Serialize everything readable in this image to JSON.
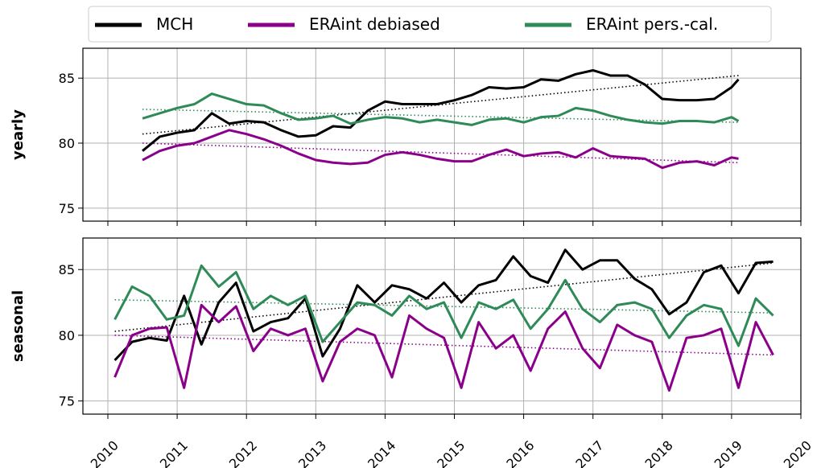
{
  "chart_data": [
    {
      "type": "line",
      "ylabel": "yearly",
      "x": [
        2010.5,
        2010.75,
        2011.0,
        2011.25,
        2011.5,
        2011.75,
        2012.0,
        2012.25,
        2012.5,
        2012.75,
        2013.0,
        2013.25,
        2013.5,
        2013.75,
        2014.0,
        2014.25,
        2014.5,
        2014.75,
        2015.0,
        2015.25,
        2015.5,
        2015.75,
        2016.0,
        2016.25,
        2016.5,
        2016.75,
        2017.0,
        2017.25,
        2017.5,
        2017.75,
        2018.0,
        2018.25,
        2018.5,
        2018.75,
        2019.0,
        2019.1
      ],
      "series": [
        {
          "name": "MCH",
          "color": "#000000",
          "values": [
            79.4,
            80.5,
            80.8,
            81.0,
            82.3,
            81.5,
            81.7,
            81.6,
            81.0,
            80.5,
            80.6,
            81.3,
            81.2,
            82.5,
            83.2,
            83.0,
            83.0,
            83.0,
            83.3,
            83.7,
            84.3,
            84.2,
            84.3,
            84.9,
            84.8,
            85.3,
            85.6,
            85.2,
            85.2,
            84.5,
            83.4,
            83.3,
            83.3,
            83.4,
            84.3,
            84.9
          ]
        },
        {
          "name": "ERAint debiased",
          "color": "#8b008b",
          "values": [
            78.7,
            79.4,
            79.8,
            80.0,
            80.5,
            81.0,
            80.7,
            80.3,
            79.8,
            79.2,
            78.7,
            78.5,
            78.4,
            78.5,
            79.1,
            79.3,
            79.1,
            78.8,
            78.6,
            78.6,
            79.1,
            79.5,
            79.0,
            79.2,
            79.3,
            78.9,
            79.6,
            79.0,
            78.9,
            78.8,
            78.1,
            78.5,
            78.6,
            78.3,
            78.9,
            78.8
          ]
        },
        {
          "name": "ERAint pers.-cal.",
          "color": "#2e8b57",
          "values": [
            81.9,
            82.3,
            82.7,
            83.0,
            83.8,
            83.4,
            83.0,
            82.9,
            82.3,
            81.8,
            81.9,
            82.1,
            81.5,
            81.8,
            82.0,
            81.9,
            81.6,
            81.8,
            81.6,
            81.4,
            81.8,
            81.9,
            81.6,
            82.0,
            82.1,
            82.7,
            82.5,
            82.1,
            81.8,
            81.6,
            81.5,
            81.7,
            81.7,
            81.6,
            82.0,
            81.7
          ]
        }
      ],
      "trends": [
        {
          "color": "#000000",
          "x": [
            2010.5,
            2019.1
          ],
          "values": [
            80.7,
            85.2
          ]
        },
        {
          "color": "#8b008b",
          "x": [
            2010.5,
            2019.1
          ],
          "values": [
            80.0,
            78.5
          ]
        },
        {
          "color": "#2e8b57",
          "x": [
            2010.5,
            2019.1
          ],
          "values": [
            82.6,
            81.6
          ]
        }
      ],
      "ylim": [
        74,
        87.3
      ],
      "yticks": [
        75,
        80,
        85
      ],
      "grid": true
    },
    {
      "type": "line",
      "ylabel": "seasonal",
      "x": [
        2010.1,
        2010.35,
        2010.6,
        2010.85,
        2011.1,
        2011.35,
        2011.6,
        2011.85,
        2012.1,
        2012.35,
        2012.6,
        2012.85,
        2013.1,
        2013.35,
        2013.6,
        2013.85,
        2014.1,
        2014.35,
        2014.6,
        2014.85,
        2015.1,
        2015.35,
        2015.6,
        2015.85,
        2016.1,
        2016.35,
        2016.6,
        2016.85,
        2017.1,
        2017.35,
        2017.6,
        2017.85,
        2018.1,
        2018.35,
        2018.6,
        2018.85,
        2019.1,
        2019.35,
        2019.6
      ],
      "series": [
        {
          "color": "#000000",
          "values": [
            78.1,
            79.5,
            79.8,
            79.6,
            83.0,
            79.3,
            82.5,
            84.0,
            80.3,
            81.0,
            81.3,
            82.8,
            78.4,
            80.5,
            83.8,
            82.5,
            83.8,
            83.5,
            82.8,
            84.0,
            82.5,
            83.8,
            84.2,
            86.0,
            84.5,
            84.0,
            86.5,
            85.0,
            85.7,
            85.7,
            84.3,
            83.5,
            81.6,
            82.5,
            84.8,
            85.3,
            83.2,
            85.5,
            85.6
          ]
        },
        {
          "color": "#8b008b",
          "values": [
            76.8,
            80.0,
            80.5,
            80.6,
            76.0,
            82.3,
            81.0,
            82.2,
            78.8,
            80.5,
            80.0,
            80.5,
            76.5,
            79.5,
            80.5,
            80.0,
            76.8,
            81.5,
            80.5,
            79.8,
            76.0,
            81.0,
            79.0,
            80.0,
            77.3,
            80.5,
            81.8,
            79.0,
            77.5,
            80.8,
            80.0,
            79.5,
            75.8,
            79.8,
            80.0,
            80.5,
            76.0,
            81.0,
            78.5
          ]
        },
        {
          "color": "#2e8b57",
          "values": [
            81.2,
            83.7,
            83.0,
            81.2,
            81.5,
            85.3,
            83.7,
            84.8,
            82.0,
            83.0,
            82.3,
            83.0,
            79.5,
            81.0,
            82.5,
            82.3,
            81.5,
            83.0,
            82.0,
            82.5,
            79.8,
            82.5,
            82.0,
            82.7,
            80.5,
            82.0,
            84.2,
            82.0,
            81.0,
            82.3,
            82.5,
            82.0,
            79.8,
            81.5,
            82.3,
            82.0,
            79.2,
            82.8,
            81.5
          ]
        }
      ],
      "trends": [
        {
          "color": "#000000",
          "x": [
            2010.1,
            2019.6
          ],
          "values": [
            80.3,
            85.5
          ]
        },
        {
          "color": "#8b008b",
          "x": [
            2010.1,
            2019.6
          ],
          "values": [
            80.0,
            78.5
          ]
        },
        {
          "color": "#2e8b57",
          "x": [
            2010.1,
            2019.6
          ],
          "values": [
            82.7,
            81.7
          ]
        }
      ],
      "ylim": [
        74,
        87.4
      ],
      "yticks": [
        75,
        80,
        85
      ],
      "grid": true,
      "xlim": [
        2009.64,
        2020
      ],
      "xticks": [
        2010,
        2011,
        2012,
        2013,
        2014,
        2015,
        2016,
        2017,
        2018,
        2019,
        2020
      ]
    }
  ]
}
